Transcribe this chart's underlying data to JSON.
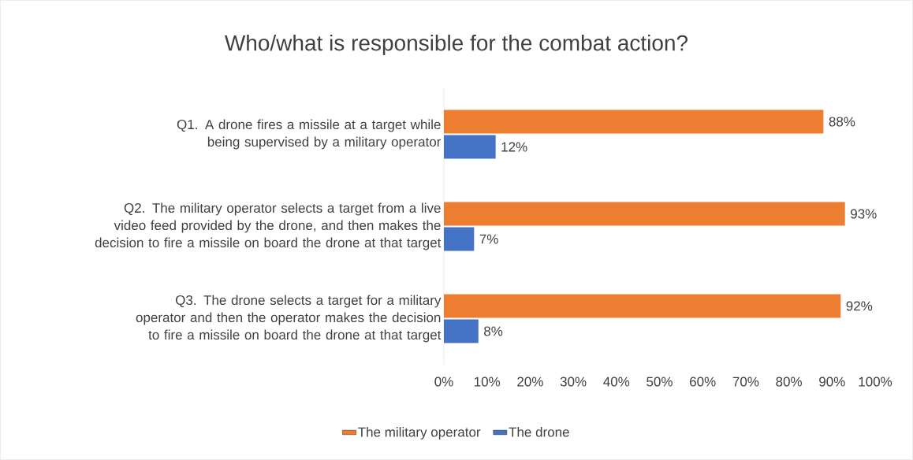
{
  "chart_data": {
    "type": "bar",
    "orientation": "horizontal",
    "title": "Who/what is responsible for the combat action?",
    "categories": [
      "Q1. A drone fires a missile at a target while being supervised by a military operator",
      "Q2. The military operator selects a target from a live video feed provided by the drone, and then makes the decision to fire a missile on board the drone at that target",
      "Q3. The drone selects a target for a military operator and then the operator makes the decision to fire a missile on board the drone at that target"
    ],
    "series": [
      {
        "name": "The military operator",
        "color": "#ed7d31",
        "values": [
          88,
          93,
          92
        ],
        "value_labels": [
          "88%",
          "93%",
          "92%"
        ]
      },
      {
        "name": "The drone",
        "color": "#4472c4",
        "values": [
          12,
          7,
          8
        ],
        "value_labels": [
          "12%",
          "7%",
          "8%"
        ]
      }
    ],
    "xlim": [
      0,
      100
    ],
    "xticks": [
      {
        "value": 0,
        "label": "0%"
      },
      {
        "value": 10,
        "label": "10%"
      },
      {
        "value": 20,
        "label": "20%"
      },
      {
        "value": 30,
        "label": "30%"
      },
      {
        "value": 40,
        "label": "40%"
      },
      {
        "value": 50,
        "label": "50%"
      },
      {
        "value": 60,
        "label": "60%"
      },
      {
        "value": 70,
        "label": "70%"
      },
      {
        "value": 80,
        "label": "80%"
      },
      {
        "value": 90,
        "label": "90%"
      },
      {
        "value": 100,
        "label": "100%"
      }
    ],
    "legend": "bottom"
  }
}
